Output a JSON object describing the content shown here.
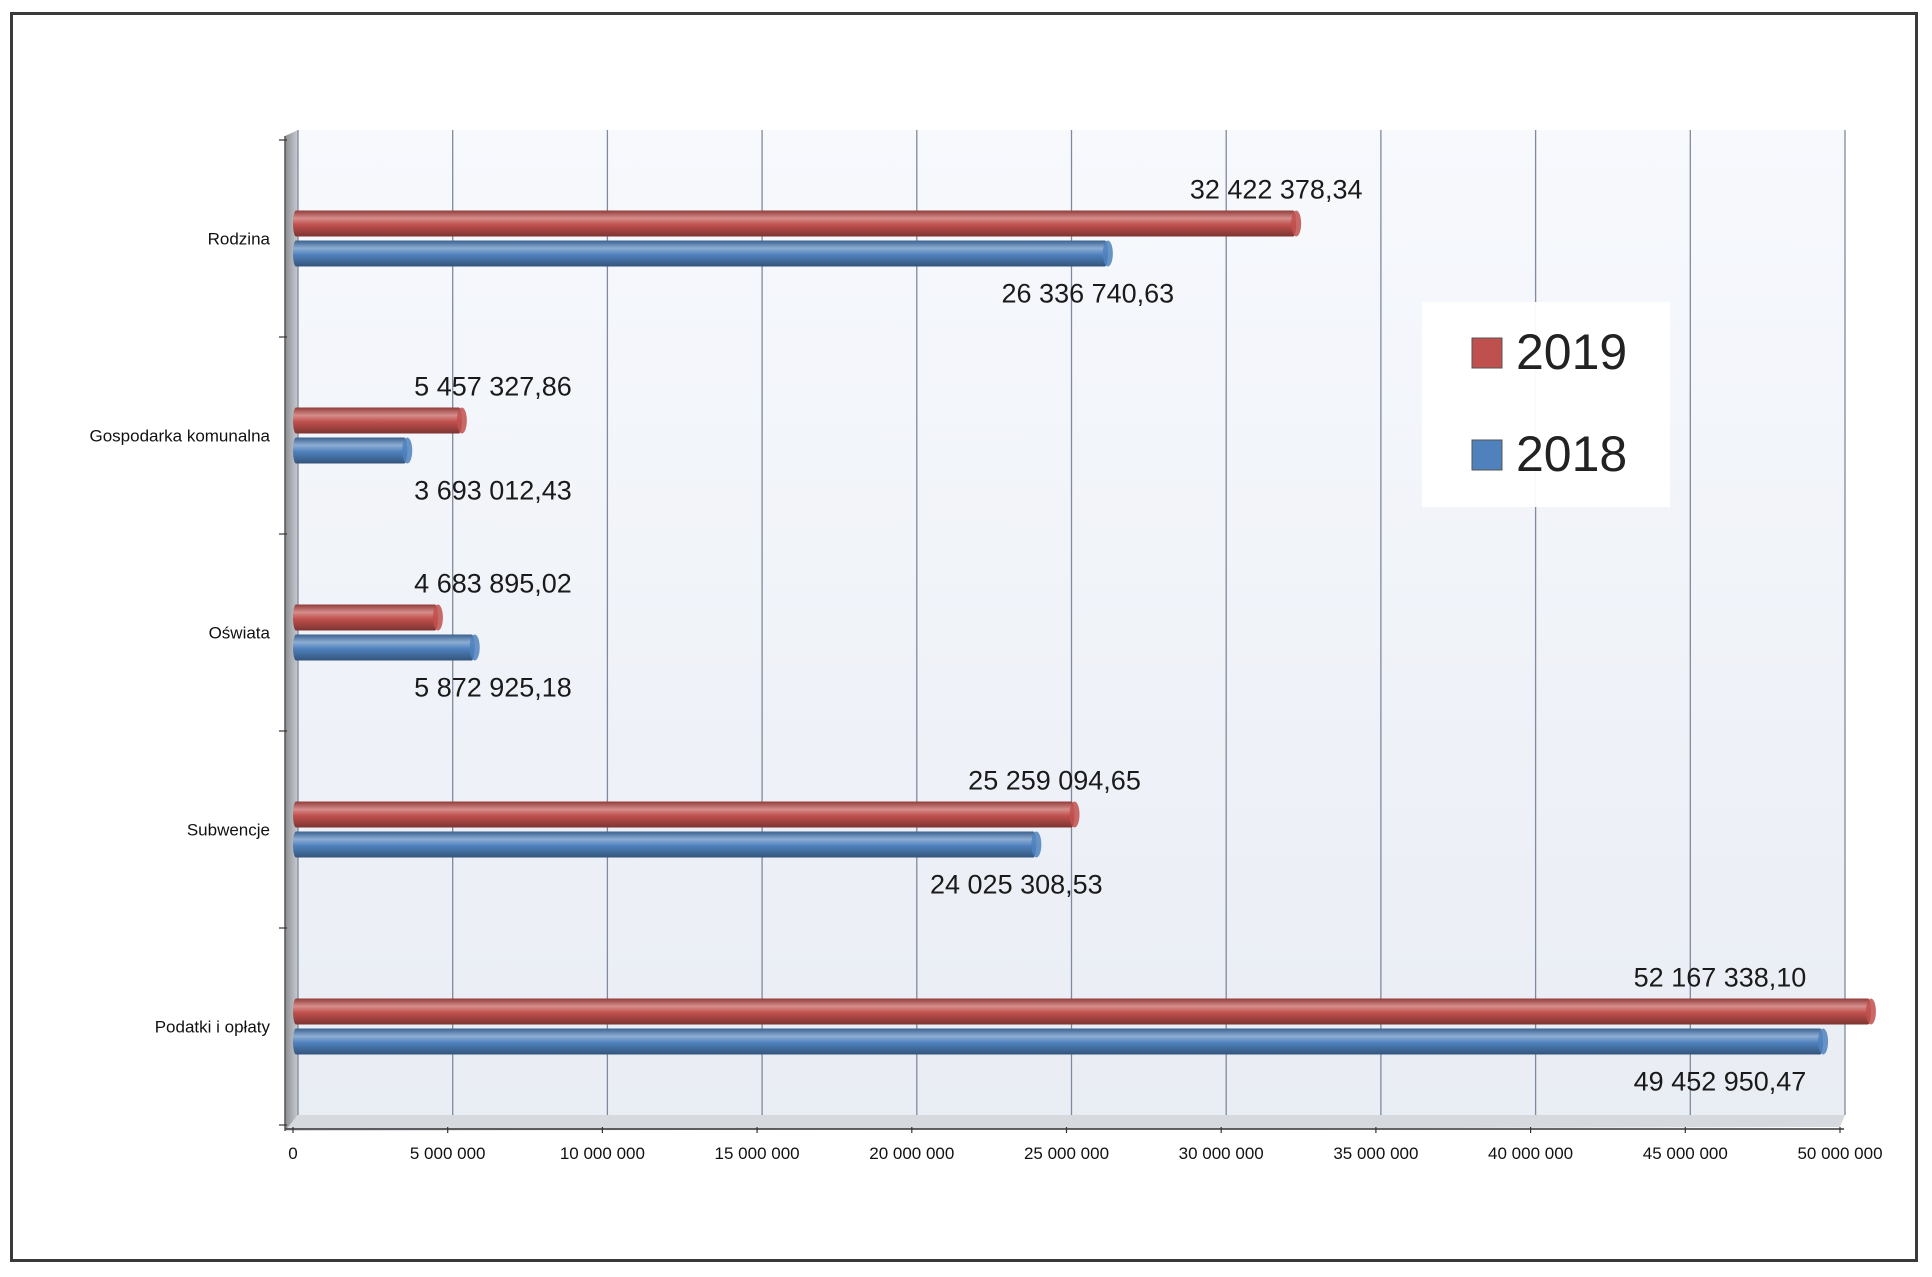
{
  "chart_data": {
    "type": "bar",
    "orientation": "horizontal",
    "style": "3d-cylinder",
    "categories": [
      "Podatki i opłaty",
      "Subwencje",
      "Oświata",
      "Gospodarka komunalna",
      "Rodzina"
    ],
    "series": [
      {
        "name": "2019",
        "color": "#c0504d",
        "values": [
          52167338.1,
          25259094.65,
          4683895.02,
          5457327.86,
          32422378.34
        ],
        "labels": [
          "52 167 338,10",
          "25 259 094,65",
          "4 683 895,02",
          "5 457 327,86",
          "32 422 378,34"
        ]
      },
      {
        "name": "2018",
        "color": "#4f81bd",
        "values": [
          49452950.47,
          24025308.53,
          5872925.18,
          3693012.43,
          26336740.63
        ],
        "labels": [
          "49 452 950,47",
          "24 025 308,53",
          "5 872 925,18",
          "3 693 012,43",
          "26 336 740,63"
        ]
      }
    ],
    "xlim": [
      0,
      50000000
    ],
    "xticks": [
      0,
      5000000,
      10000000,
      15000000,
      20000000,
      25000000,
      30000000,
      35000000,
      40000000,
      45000000,
      50000000
    ],
    "xtick_labels": [
      "0",
      "5 000 000",
      "10 000 000",
      "15 000 000",
      "20 000 000",
      "25 000 000",
      "30 000 000",
      "35 000 000",
      "40 000 000",
      "45 000 000",
      "50 000 000"
    ],
    "title": "",
    "xlabel": "",
    "ylabel": "",
    "grid": true,
    "legend_position": "right",
    "legend": [
      {
        "label": "2019",
        "color": "#c0504d"
      },
      {
        "label": "2018",
        "color": "#4f81bd"
      }
    ]
  }
}
